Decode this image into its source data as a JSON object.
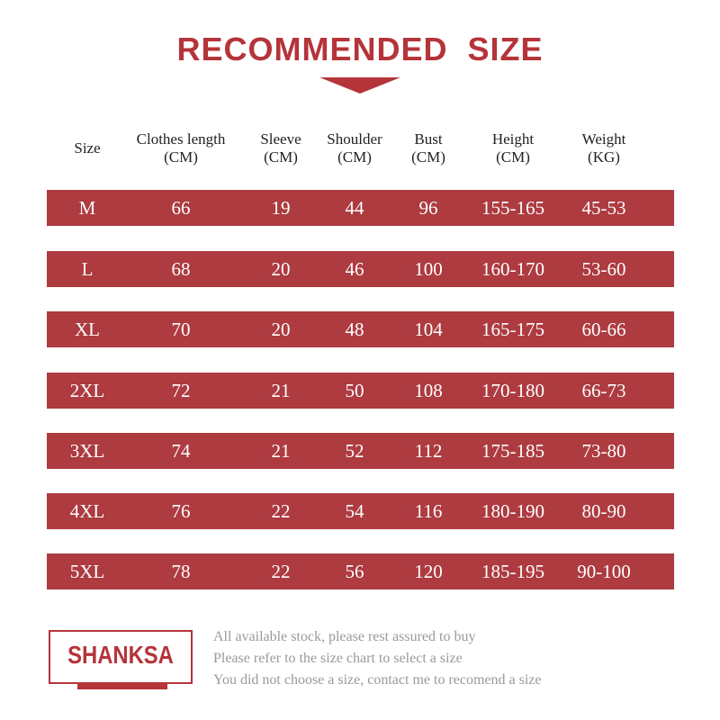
{
  "title": "RECOMMENDED  SIZE",
  "headers": [
    {
      "line1": "Size",
      "line2": ""
    },
    {
      "line1": "Clothes length",
      "line2": "(CM)"
    },
    {
      "line1": "Sleeve",
      "line2": "(CM)"
    },
    {
      "line1": "Shoulder",
      "line2": "(CM)"
    },
    {
      "line1": "Bust",
      "line2": "(CM)"
    },
    {
      "line1": "Height",
      "line2": "(CM)"
    },
    {
      "line1": "Weight",
      "line2": "(KG)"
    }
  ],
  "rows": [
    [
      "M",
      "66",
      "19",
      "44",
      "96",
      "155-165",
      "45-53"
    ],
    [
      "L",
      "68",
      "20",
      "46",
      "100",
      "160-170",
      "53-60"
    ],
    [
      "XL",
      "70",
      "20",
      "48",
      "104",
      "165-175",
      "60-66"
    ],
    [
      "2XL",
      "72",
      "21",
      "50",
      "108",
      "170-180",
      "66-73"
    ],
    [
      "3XL",
      "74",
      "21",
      "52",
      "112",
      "175-185",
      "73-80"
    ],
    [
      "4XL",
      "76",
      "22",
      "54",
      "116",
      "180-190",
      "80-90"
    ],
    [
      "5XL",
      "78",
      "22",
      "56",
      "120",
      "185-195",
      "90-100"
    ]
  ],
  "brand": "SHANKSA",
  "notes": [
    "All available stock, please rest assured to buy",
    "Please refer to the size chart to select a size",
    "You did not choose a size, contact me to recomend a size"
  ],
  "colors": {
    "accent": "#b5343a",
    "row_bg": "#ad3b40",
    "note_text": "#9a9a9a"
  }
}
